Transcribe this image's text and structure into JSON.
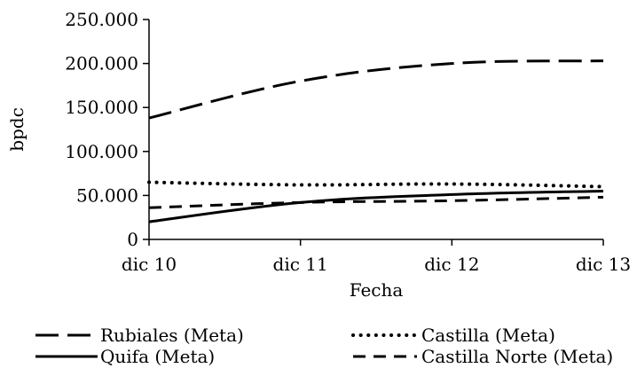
{
  "chart_data": {
    "type": "line",
    "title": "",
    "xlabel": "Fecha",
    "ylabel": "bpdc",
    "categories": [
      "dic 10",
      "dic 11",
      "dic 12",
      "dic 13"
    ],
    "ylim": [
      0,
      250000
    ],
    "yticks": [
      {
        "value": 0,
        "label": "0"
      },
      {
        "value": 50000,
        "label": "50.000"
      },
      {
        "value": 100000,
        "label": "100.000"
      },
      {
        "value": 150000,
        "label": "150.000"
      },
      {
        "value": 200000,
        "label": "200.000"
      },
      {
        "value": 250000,
        "label": "250.000"
      }
    ],
    "grid": false,
    "legend_position": "bottom",
    "series": [
      {
        "name": "Rubiales (Meta)",
        "dash": "long-dash",
        "values": [
          138000,
          180000,
          200000,
          203000
        ]
      },
      {
        "name": "Castilla (Meta)",
        "dash": "dot",
        "values": [
          65000,
          62000,
          63000,
          60000
        ]
      },
      {
        "name": "Quifa (Meta)",
        "dash": "solid",
        "values": [
          20000,
          42000,
          51000,
          55000
        ]
      },
      {
        "name": "Castilla Norte (Meta)",
        "dash": "dash",
        "values": [
          36000,
          42000,
          44000,
          48000
        ]
      }
    ]
  }
}
